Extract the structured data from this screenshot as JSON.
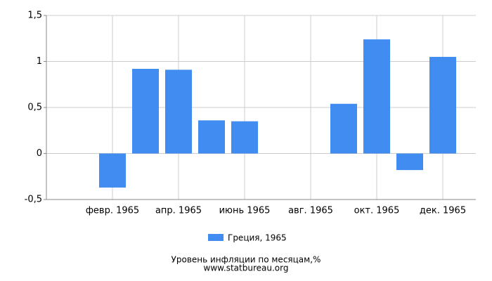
{
  "chart_data": {
    "type": "bar",
    "title": "Уровень инфляции по месяцам,%",
    "subtitle": "www.statbureau.org",
    "categories": [
      null,
      "февр. 1965",
      null,
      "апр. 1965",
      null,
      "июнь 1965",
      null,
      "авг. 1965",
      null,
      "окт. 1965",
      null,
      "дек. 1965"
    ],
    "series": [
      {
        "name": "Греция, 1965",
        "color": "#418cf0",
        "values": [
          0,
          -0.37,
          0.92,
          0.91,
          0.36,
          0.35,
          0,
          0,
          0.54,
          1.24,
          -0.18,
          1.05
        ]
      }
    ],
    "ylim": [
      -0.5,
      1.5
    ],
    "yticks": [
      {
        "value": -0.5,
        "label": "-0,5"
      },
      0,
      {
        "value": 0.5,
        "label": "0,5"
      },
      1,
      {
        "value": 1.5,
        "label": "1,5"
      }
    ],
    "grid": true
  }
}
